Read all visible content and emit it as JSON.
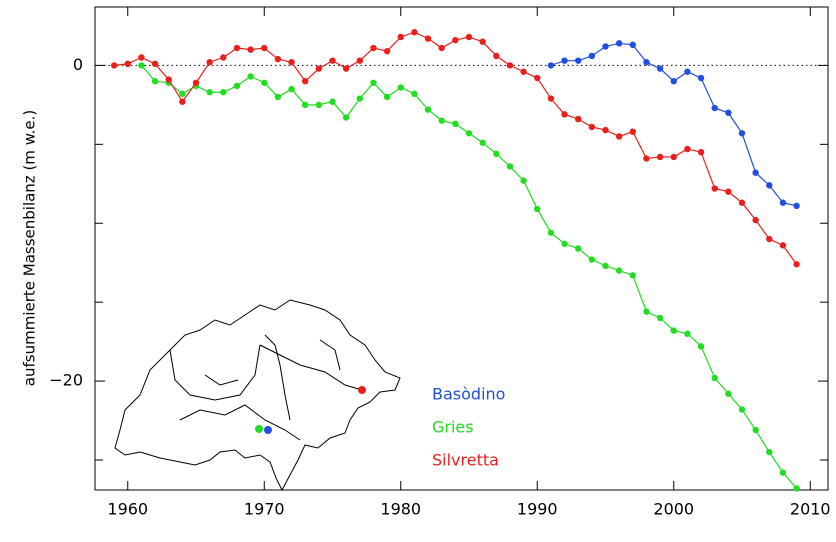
{
  "chart_data": {
    "type": "line",
    "y_label": "aufsummierte Massenbilanz  (m w.e.)",
    "x": [
      1959,
      1960,
      1961,
      1962,
      1963,
      1964,
      1965,
      1966,
      1967,
      1968,
      1969,
      1970,
      1971,
      1972,
      1973,
      1974,
      1975,
      1976,
      1977,
      1978,
      1979,
      1980,
      1981,
      1982,
      1983,
      1984,
      1985,
      1986,
      1987,
      1988,
      1989,
      1990,
      1991,
      1992,
      1993,
      1994,
      1995,
      1996,
      1997,
      1998,
      1999,
      2000,
      2001,
      2002,
      2003,
      2004,
      2005,
      2006,
      2007,
      2008,
      2009
    ],
    "series": [
      {
        "name": "Basòdino",
        "color": "#1f4fe0",
        "values": [
          null,
          null,
          null,
          null,
          null,
          null,
          null,
          null,
          null,
          null,
          null,
          null,
          null,
          null,
          null,
          null,
          null,
          null,
          null,
          null,
          null,
          null,
          null,
          null,
          null,
          null,
          null,
          null,
          null,
          null,
          null,
          null,
          0,
          0.3,
          0.3,
          0.6,
          1.2,
          1.4,
          1.3,
          0.2,
          -0.2,
          -1.0,
          -0.4,
          -0.8,
          -2.7,
          -3.0,
          -4.3,
          -6.8,
          -7.6,
          -8.7,
          -8.9
        ]
      },
      {
        "name": "Gries",
        "color": "#22dd22",
        "values": [
          null,
          null,
          0,
          -1.0,
          -1.1,
          -1.8,
          -1.3,
          -1.7,
          -1.7,
          -1.3,
          -0.7,
          -1.1,
          -2.0,
          -1.5,
          -2.5,
          -2.5,
          -2.3,
          -3.3,
          -2.1,
          -1.1,
          -2.0,
          -1.4,
          -1.8,
          -2.8,
          -3.5,
          -3.7,
          -4.3,
          -4.9,
          -5.6,
          -6.4,
          -7.3,
          -9.1,
          -10.6,
          -11.3,
          -11.6,
          -12.3,
          -12.7,
          -13.0,
          -13.3,
          -15.6,
          -16.0,
          -16.8,
          -17.0,
          -17.8,
          -19.8,
          -20.8,
          -21.8,
          -23.1,
          -24.5,
          -25.8,
          -26.8
        ]
      },
      {
        "name": "Silvretta",
        "color": "#e8201c",
        "values": [
          0,
          0.1,
          0.5,
          0.1,
          -0.9,
          -2.3,
          -1.1,
          0.2,
          0.5,
          1.1,
          1.0,
          1.1,
          0.4,
          0.2,
          -1.0,
          -0.2,
          0.3,
          -0.2,
          0.3,
          1.1,
          0.9,
          1.8,
          2.1,
          1.7,
          1.1,
          1.6,
          1.8,
          1.5,
          0.6,
          0,
          -0.4,
          -0.8,
          -2.1,
          -3.1,
          -3.4,
          -3.9,
          -4.1,
          -4.5,
          -4.2,
          -5.9,
          -5.8,
          -5.8,
          -5.3,
          -5.5,
          -7.8,
          -8.0,
          -8.7,
          -9.8,
          -11.0,
          -11.4,
          -12.6
        ]
      }
    ],
    "xlim": [
      1957.6,
      2011.3
    ],
    "xticks": [
      1960,
      1970,
      1980,
      1990,
      2000,
      2010
    ],
    "ylim": [
      -26.9,
      3.7
    ],
    "yticks": [
      {
        "value": -20,
        "label": "−20"
      },
      0
    ],
    "yticks_minor": [
      -25,
      -15,
      -10,
      -5
    ],
    "zero_line": true
  }
}
